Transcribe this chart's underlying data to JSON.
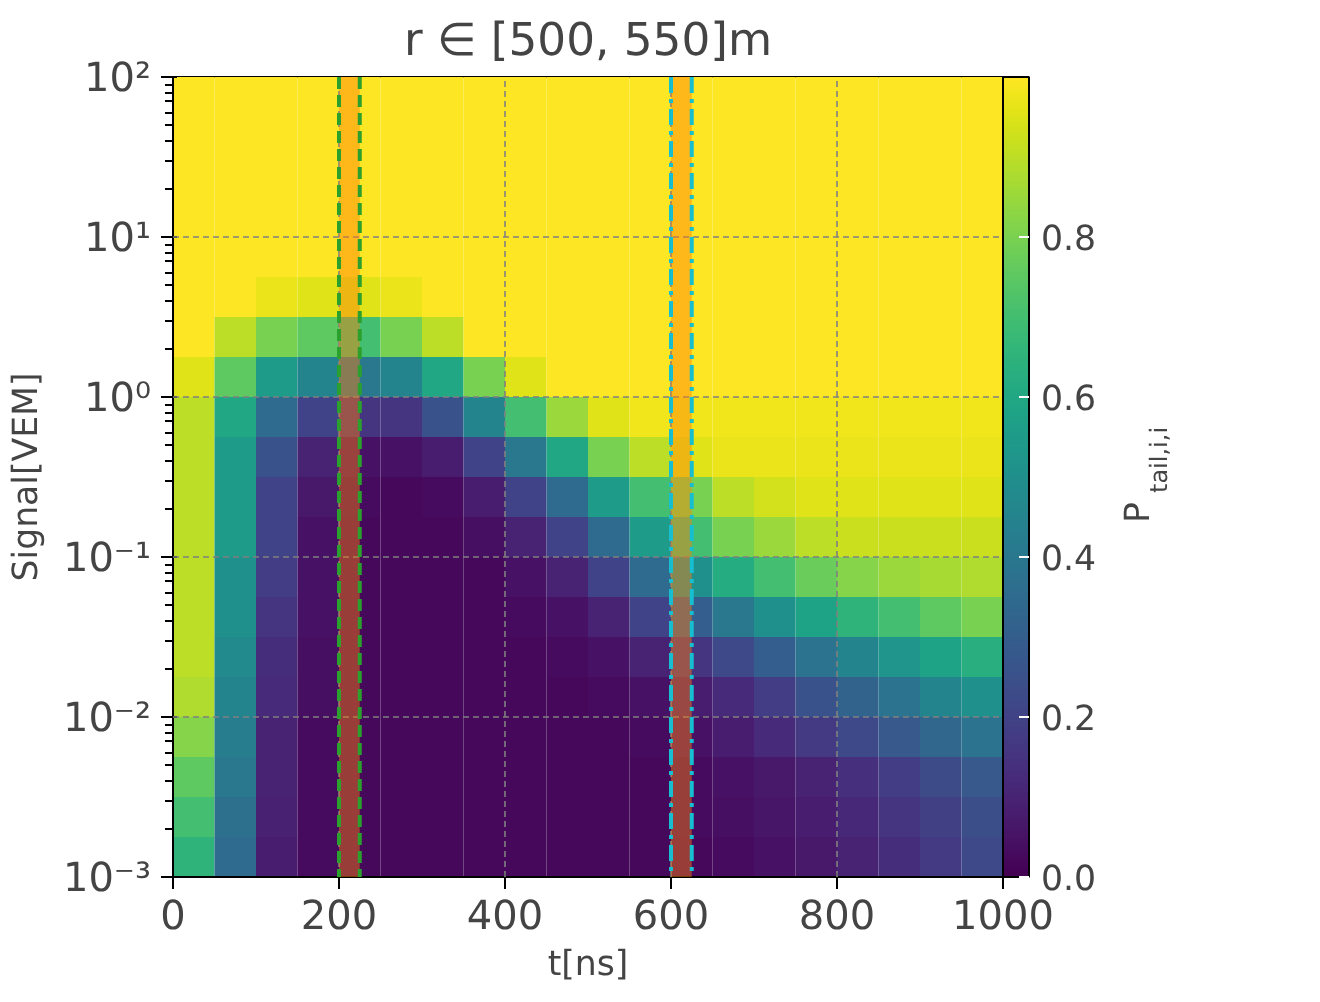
{
  "chart_data": {
    "type": "heatmap",
    "title": "r ∈ [500, 550]m",
    "xlabel": "t[ns]",
    "ylabel": "Signal[VEM]",
    "clabel": "P$_{tail,i,i}$",
    "log": "y",
    "grid": true,
    "cells": [
      [
        1,
        1,
        1,
        1,
        1,
        1,
        1,
        1,
        1,
        1,
        1,
        1,
        1,
        1,
        1,
        1,
        1,
        1,
        1,
        1
      ],
      [
        1,
        1,
        1,
        1,
        1,
        1,
        1,
        1,
        1,
        1,
        1,
        1,
        1,
        1,
        1,
        1,
        1,
        1,
        1,
        1
      ],
      [
        1,
        1,
        1,
        1,
        1,
        1,
        1,
        1,
        1,
        1,
        1,
        1,
        1,
        1,
        1,
        1,
        1,
        1,
        1,
        1
      ],
      [
        1,
        1,
        1,
        1,
        1,
        1,
        1,
        1,
        1,
        1,
        1,
        1,
        1,
        1,
        1,
        1,
        1,
        1,
        1,
        1
      ],
      [
        1,
        1,
        1,
        1,
        1,
        1,
        1,
        1,
        1,
        1,
        1,
        1,
        1,
        1,
        1,
        1,
        1,
        1,
        1,
        1
      ],
      [
        1,
        1,
        0.97,
        0.95,
        0.95,
        0.97,
        1,
        1,
        1,
        1,
        1,
        1,
        1,
        1,
        1,
        1,
        1,
        1,
        1,
        1
      ],
      [
        1,
        0.9,
        0.8,
        0.75,
        0.7,
        0.8,
        0.9,
        1,
        1,
        1,
        1,
        1,
        1,
        1,
        1,
        1,
        1,
        1,
        1,
        1
      ],
      [
        0.95,
        0.75,
        0.55,
        0.45,
        0.4,
        0.45,
        0.6,
        0.8,
        0.95,
        1,
        1,
        1,
        1,
        1,
        1,
        1,
        1,
        1,
        1,
        1
      ],
      [
        0.9,
        0.6,
        0.35,
        0.2,
        0.15,
        0.15,
        0.25,
        0.45,
        0.7,
        0.85,
        0.95,
        0.98,
        0.98,
        0.98,
        0.98,
        0.98,
        0.98,
        0.98,
        0.98,
        0.98
      ],
      [
        0.9,
        0.55,
        0.25,
        0.1,
        0.05,
        0.05,
        0.08,
        0.2,
        0.4,
        0.6,
        0.8,
        0.9,
        0.95,
        0.97,
        0.97,
        0.97,
        0.97,
        0.97,
        0.97,
        0.97
      ],
      [
        0.9,
        0.55,
        0.2,
        0.07,
        0.03,
        0.02,
        0.03,
        0.08,
        0.2,
        0.35,
        0.55,
        0.7,
        0.8,
        0.9,
        0.93,
        0.95,
        0.95,
        0.95,
        0.95,
        0.95
      ],
      [
        0.9,
        0.55,
        0.2,
        0.05,
        0.02,
        0.02,
        0.02,
        0.04,
        0.1,
        0.2,
        0.35,
        0.55,
        0.7,
        0.8,
        0.85,
        0.9,
        0.92,
        0.92,
        0.92,
        0.92
      ],
      [
        0.9,
        0.5,
        0.18,
        0.05,
        0.02,
        0.02,
        0.02,
        0.02,
        0.05,
        0.1,
        0.2,
        0.35,
        0.5,
        0.62,
        0.7,
        0.77,
        0.82,
        0.85,
        0.87,
        0.88
      ],
      [
        0.9,
        0.5,
        0.15,
        0.05,
        0.02,
        0.02,
        0.02,
        0.02,
        0.03,
        0.05,
        0.1,
        0.2,
        0.3,
        0.4,
        0.5,
        0.58,
        0.65,
        0.7,
        0.75,
        0.8
      ],
      [
        0.9,
        0.48,
        0.13,
        0.04,
        0.02,
        0.02,
        0.02,
        0.02,
        0.02,
        0.03,
        0.05,
        0.1,
        0.15,
        0.22,
        0.3,
        0.38,
        0.45,
        0.52,
        0.58,
        0.63
      ],
      [
        0.88,
        0.45,
        0.12,
        0.04,
        0.02,
        0.02,
        0.02,
        0.02,
        0.02,
        0.02,
        0.03,
        0.05,
        0.08,
        0.12,
        0.18,
        0.25,
        0.32,
        0.38,
        0.45,
        0.5
      ],
      [
        0.82,
        0.42,
        0.1,
        0.03,
        0.02,
        0.02,
        0.02,
        0.02,
        0.02,
        0.02,
        0.02,
        0.03,
        0.05,
        0.08,
        0.12,
        0.17,
        0.22,
        0.28,
        0.33,
        0.38
      ],
      [
        0.75,
        0.4,
        0.1,
        0.03,
        0.02,
        0.02,
        0.02,
        0.02,
        0.02,
        0.02,
        0.02,
        0.02,
        0.03,
        0.05,
        0.07,
        0.1,
        0.14,
        0.18,
        0.23,
        0.28
      ],
      [
        0.7,
        0.37,
        0.09,
        0.03,
        0.02,
        0.02,
        0.02,
        0.02,
        0.02,
        0.02,
        0.02,
        0.02,
        0.03,
        0.04,
        0.06,
        0.08,
        0.11,
        0.15,
        0.19,
        0.24
      ],
      [
        0.65,
        0.35,
        0.08,
        0.03,
        0.02,
        0.02,
        0.02,
        0.02,
        0.02,
        0.02,
        0.02,
        0.02,
        0.02,
        0.03,
        0.05,
        0.07,
        0.1,
        0.13,
        0.17,
        0.22
      ]
    ],
    "xlim": [
      0,
      1000
    ],
    "xticks": [
      0,
      200,
      400,
      600,
      800,
      1000
    ],
    "ylim": [
      0.001,
      100
    ],
    "yticks": [
      {
        "value": 0.001,
        "label": "10⁻³"
      },
      {
        "value": 0.01,
        "label": "10⁻²"
      },
      {
        "value": 0.1,
        "label": "10⁻¹"
      },
      {
        "value": 1,
        "label": "10⁰"
      },
      {
        "value": 10,
        "label": "10¹"
      },
      {
        "value": 100,
        "label": "10²"
      }
    ],
    "clim": [
      0,
      1
    ],
    "cticks": [
      {
        "value": 0,
        "label": "0.0"
      },
      0.2,
      0.4,
      0.6,
      0.8
    ],
    "bands": [
      {
        "axis": "x",
        "from": 200,
        "to": 225,
        "color": "#ff7f0e"
      },
      {
        "axis": "x",
        "from": 600,
        "to": 625,
        "color": "#ff7f0e"
      }
    ],
    "ref_lines": [
      {
        "axis": "x",
        "value": 200,
        "color": "#2ca02c",
        "line_style": "dashed"
      },
      {
        "axis": "x",
        "value": 225,
        "color": "#2ca02c",
        "line_style": "dashed"
      },
      {
        "axis": "x",
        "value": 600,
        "color": "#17becf",
        "line_style": "dashdot"
      },
      {
        "axis": "x",
        "value": 625,
        "color": "#17becf",
        "line_style": "dashdot"
      }
    ]
  }
}
